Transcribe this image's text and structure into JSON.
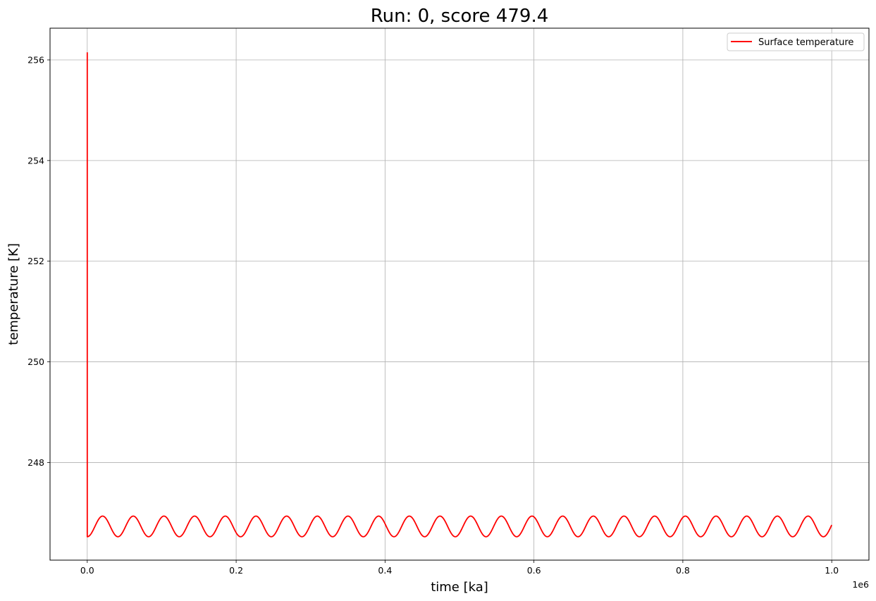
{
  "chart_data": {
    "type": "line",
    "title": "Run: 0, score 479.4",
    "xlabel": "time [ka]",
    "ylabel": "temperature [K]",
    "x_offset_label": "1e6",
    "xlim": [
      -0.05,
      1.05
    ],
    "ylim": [
      246.06,
      256.63
    ],
    "xticks": [
      0.0,
      0.2,
      0.4,
      0.6,
      0.8,
      1.0
    ],
    "xtick_labels": [
      "0.0",
      "0.2",
      "0.4",
      "0.6",
      "0.8",
      "1.0"
    ],
    "yticks": [
      248,
      250,
      252,
      254,
      256
    ],
    "ytick_labels": [
      "248",
      "250",
      "252",
      "254",
      "256"
    ],
    "grid": true,
    "legend_position": "top-right",
    "series": [
      {
        "name": "Surface temperature",
        "color": "#ff0000",
        "spike": {
          "x": 0.0,
          "y_start": 256.15,
          "y_end": 246.53
        },
        "oscillation": {
          "baseline": 246.73,
          "amplitude": 0.205,
          "period": 0.0412,
          "x_start": 0.0,
          "x_end": 1.0
        }
      }
    ]
  }
}
